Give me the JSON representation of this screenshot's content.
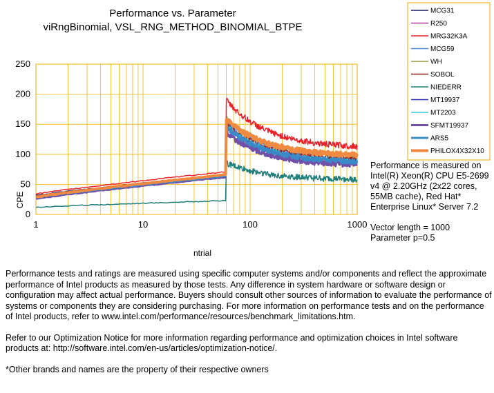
{
  "chart_data": {
    "type": "line",
    "title": "Performance vs. Parameter",
    "subtitle": "viRngBinomial, VSL_RNG_METHOD_BINOMIAL_BTPE",
    "xlabel": "ntrial",
    "ylabel": "CPE",
    "xscale": "log",
    "xlim": [
      1,
      1000
    ],
    "ylim": [
      0,
      250
    ],
    "xticks": [
      1,
      10,
      100,
      1000
    ],
    "yticks": [
      0,
      50,
      100,
      150,
      200,
      250
    ],
    "grid": true,
    "legend_position": "top-right",
    "transition_x": 60,
    "series": [
      {
        "name": "MCG31",
        "color": "#1a1a66",
        "stroke": 1,
        "low": 32,
        "high": 66,
        "peak": 150,
        "end": 85,
        "noise": 4
      },
      {
        "name": "R250",
        "color": "#b03a9a",
        "stroke": 1,
        "low": 28,
        "high": 64,
        "peak": 145,
        "end": 85,
        "noise": 4
      },
      {
        "name": "MRG32K3A",
        "color": "#e8202a",
        "stroke": 1.5,
        "low": 34,
        "high": 71,
        "peak": 190,
        "end": 110,
        "noise": 5
      },
      {
        "name": "MCG59",
        "color": "#4a86d8",
        "stroke": 1,
        "low": 30,
        "high": 66,
        "peak": 155,
        "end": 90,
        "noise": 4
      },
      {
        "name": "WH",
        "color": "#9a9a3a",
        "stroke": 1,
        "low": 30,
        "high": 67,
        "peak": 160,
        "end": 95,
        "noise": 4
      },
      {
        "name": "SOBOL",
        "color": "#8b1a1a",
        "stroke": 1,
        "low": 31,
        "high": 67,
        "peak": 150,
        "end": 90,
        "noise": 4
      },
      {
        "name": "NIEDERR",
        "color": "#1f7f7a",
        "stroke": 1.5,
        "low": 12,
        "high": 23,
        "peak": 85,
        "end": 57,
        "noise": 5
      },
      {
        "name": "MT19937",
        "color": "#2a2ab8",
        "stroke": 1,
        "low": 29,
        "high": 64,
        "peak": 145,
        "end": 85,
        "noise": 4
      },
      {
        "name": "MT2203",
        "color": "#30c8d8",
        "stroke": 1,
        "low": 29,
        "high": 64,
        "peak": 148,
        "end": 86,
        "noise": 4
      },
      {
        "name": "SFMT19937",
        "color": "#7050a8",
        "stroke": 3,
        "low": 26,
        "high": 62,
        "peak": 135,
        "end": 80,
        "noise": 4
      },
      {
        "name": "ARS5",
        "color": "#3a8ac8",
        "stroke": 3,
        "low": 28,
        "high": 64,
        "peak": 145,
        "end": 85,
        "noise": 4
      },
      {
        "name": "PHILOX4X32X10",
        "color": "#f08a40",
        "stroke": 4,
        "low": 29,
        "high": 66,
        "peak": 158,
        "end": 96,
        "noise": 4
      }
    ]
  },
  "notes": {
    "performance": "Performance is measured on Intel(R) Xeon(R) CPU E5-2699 v4 @ 2.20GHz (2x22 cores, 55MB cache), Red Hat* Enterprise Linux* Server 7.2",
    "params": [
      "Vector length = 1000",
      "Parameter p=0.5"
    ]
  },
  "disclaimer": {
    "p1": "Performance tests and ratings are measured using specific computer systems and/or components and reflect the approximate performance of Intel products as measured by those tests. Any difference in system hardware or software design or configuration may affect actual performance. Buyers should consult other sources of information to evaluate the performance of systems or components they are considering purchasing. For more information on performance tests and on the performance of Intel products, refer to www.intel.com/performance/resources/benchmark_limitations.htm.",
    "p2": "Refer to our Optimization Notice for more information regarding performance and optimization choices in Intel software products at: http://software.intel.com/en-us/articles/optimization-notice/.",
    "p3": "*Other brands and names are the property of their respective owners"
  }
}
